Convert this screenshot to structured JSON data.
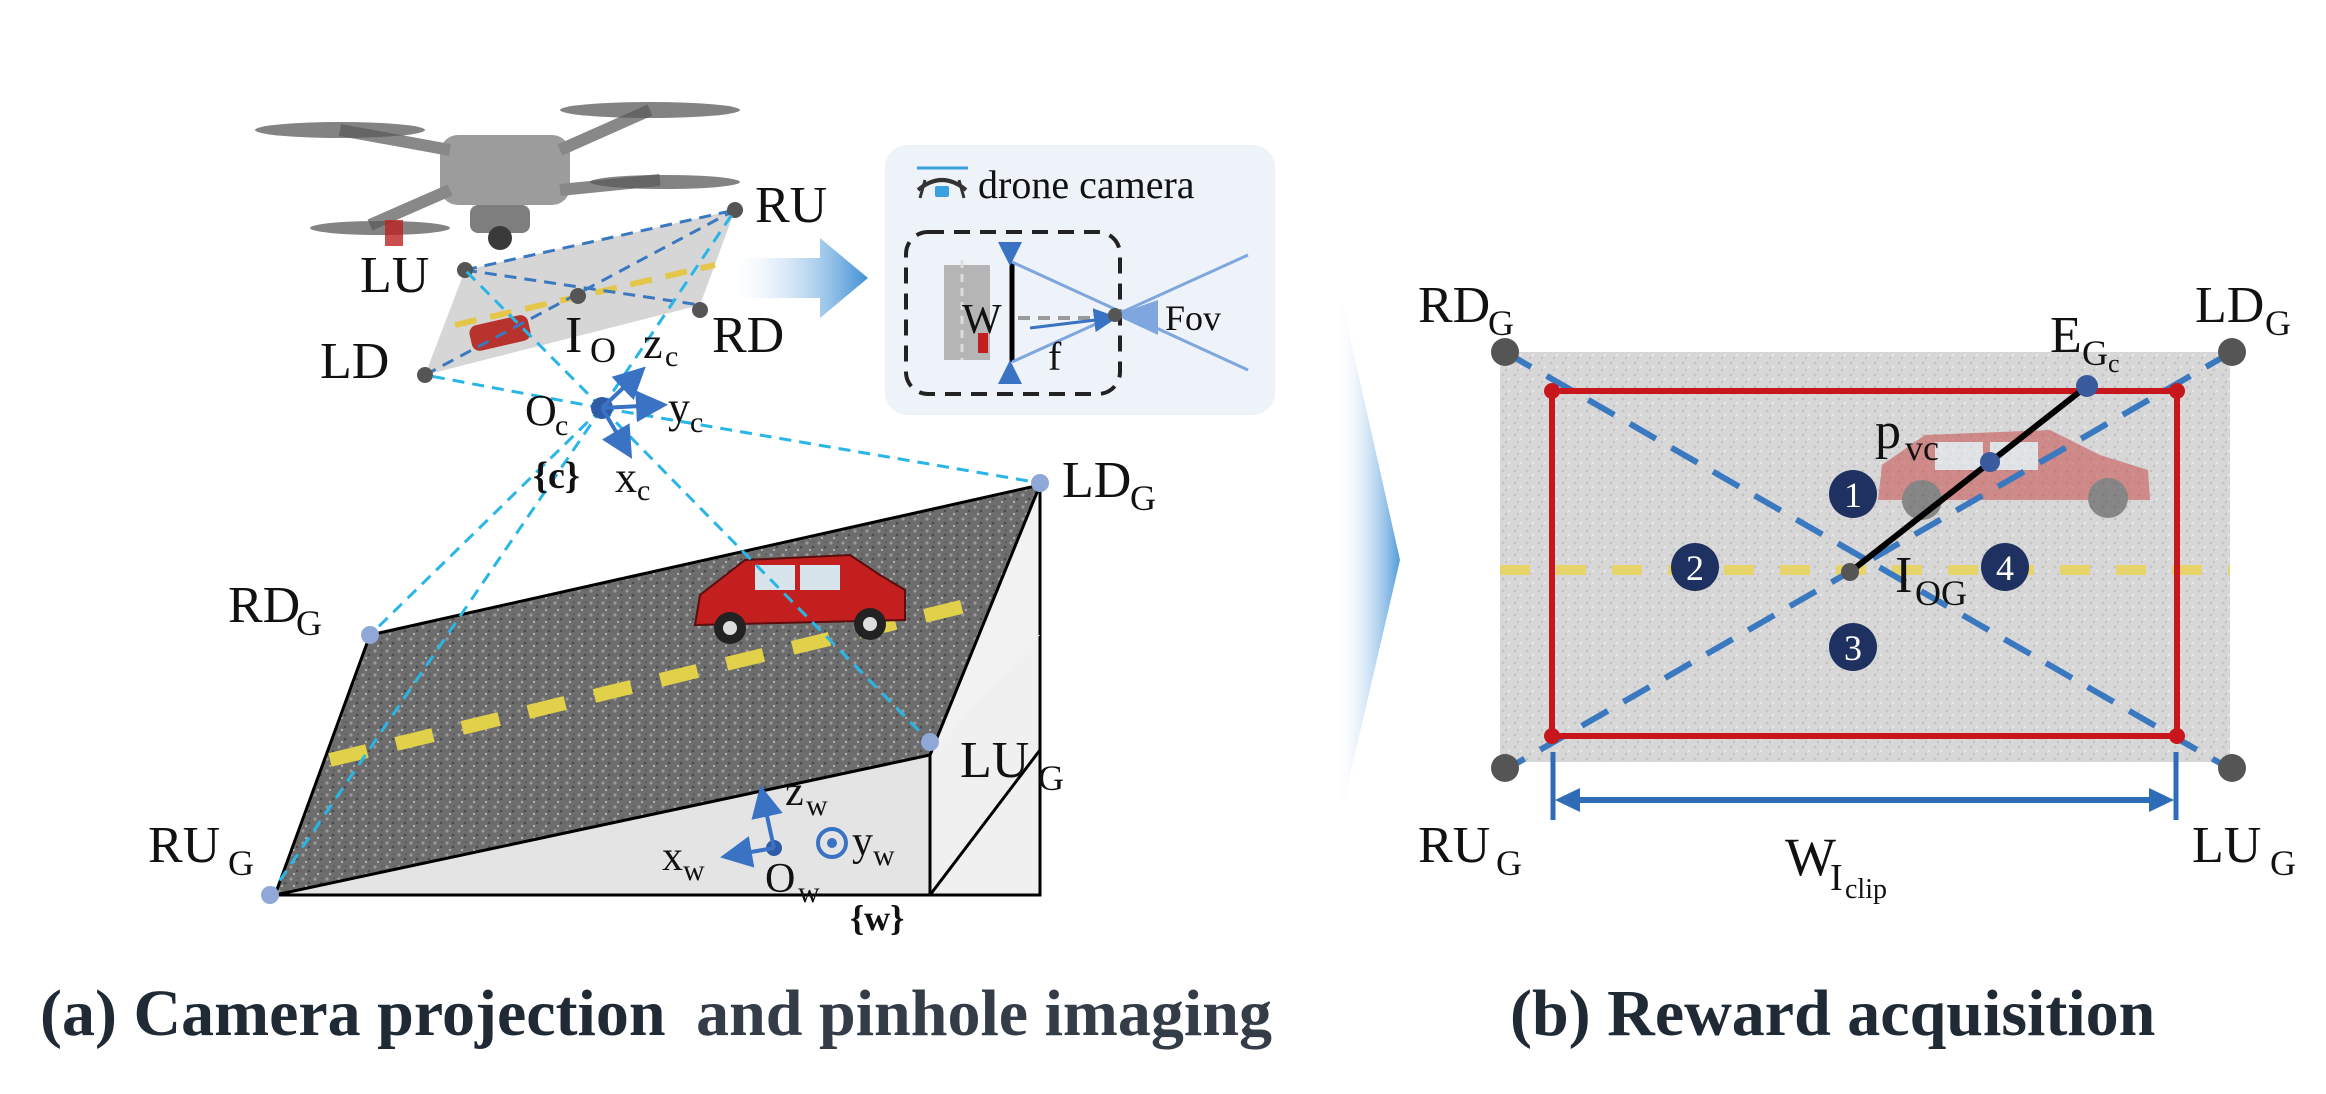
{
  "panel_a": {
    "caption_a": "(a) Camera projection",
    "caption_b": "and pinhole imaging",
    "drone_points": {
      "lu": "LU",
      "ru": "RU",
      "ld": "LD",
      "rd": "RD",
      "io": "I",
      "io_sub": "O"
    },
    "camera_frame": {
      "origin": "O",
      "origin_sub": "c",
      "z": "z",
      "z_sub": "c",
      "y": "y",
      "y_sub": "c",
      "x": "x",
      "x_sub": "c",
      "frame": "{c}"
    },
    "ground_points": {
      "ld": "LD",
      "ld_sub": "G",
      "rd": "RD",
      "rd_sub": "G",
      "lu": "LU",
      "lu_sub": "G",
      "ru": "RU",
      "ru_sub": "G"
    },
    "world_frame": {
      "origin": "O",
      "origin_sub": "w",
      "z": "z",
      "z_sub": "w",
      "y": "y",
      "y_sub": "w",
      "x": "x",
      "x_sub": "w",
      "frame": "{w}"
    },
    "inset": {
      "title": "drone camera",
      "w_label": "W",
      "f_label": "f",
      "fov_label": "Fov"
    }
  },
  "panel_b": {
    "caption": "(b) Reward acquisition",
    "corners": {
      "rd": "RD",
      "rd_sub": "G",
      "ld": "LD",
      "ld_sub": "G",
      "ru": "RU",
      "ru_sub": "G",
      "lu": "LU",
      "lu_sub": "G"
    },
    "edge_point": "E",
    "edge_point_sub": "G",
    "edge_point_subsub": "c",
    "vehicle_point": "p",
    "vehicle_point_sub": "vc",
    "center_point": "I",
    "center_point_sub": "OG",
    "width_label": "W",
    "width_sub": "I",
    "width_subsub": "clip",
    "regions": [
      "1",
      "2",
      "3",
      "4"
    ]
  },
  "colors": {
    "dashed_cyan": "#29b6e6",
    "dashed_blue": "#3a78c0",
    "red_frame": "#c8161d",
    "arrow_blue": "#3a72c4",
    "caption": "#1f2a35"
  }
}
